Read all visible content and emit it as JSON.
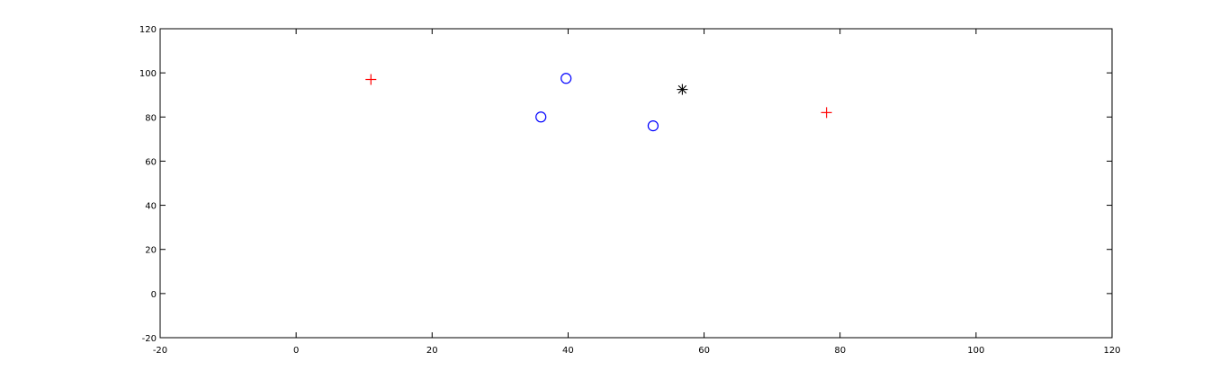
{
  "chart_data": {
    "type": "scatter",
    "title": "",
    "xlabel": "",
    "ylabel": "",
    "xlim": [
      -20,
      120
    ],
    "ylim": [
      -20,
      120
    ],
    "xticks": [
      -20,
      0,
      20,
      40,
      60,
      80,
      100,
      120
    ],
    "yticks": [
      -20,
      0,
      20,
      40,
      60,
      80,
      100,
      120
    ],
    "grid": false,
    "series": [
      {
        "marker": "plus",
        "color": "#ff0000",
        "points": [
          {
            "x": 11,
            "y": 97
          },
          {
            "x": 78,
            "y": 82
          }
        ]
      },
      {
        "marker": "circle",
        "color": "#0000ff",
        "points": [
          {
            "x": 36,
            "y": 80
          },
          {
            "x": 39.7,
            "y": 97.5
          },
          {
            "x": 52.5,
            "y": 76
          }
        ]
      },
      {
        "marker": "asterisk",
        "color": "#000000",
        "points": [
          {
            "x": 56.8,
            "y": 92.5
          }
        ]
      }
    ]
  }
}
